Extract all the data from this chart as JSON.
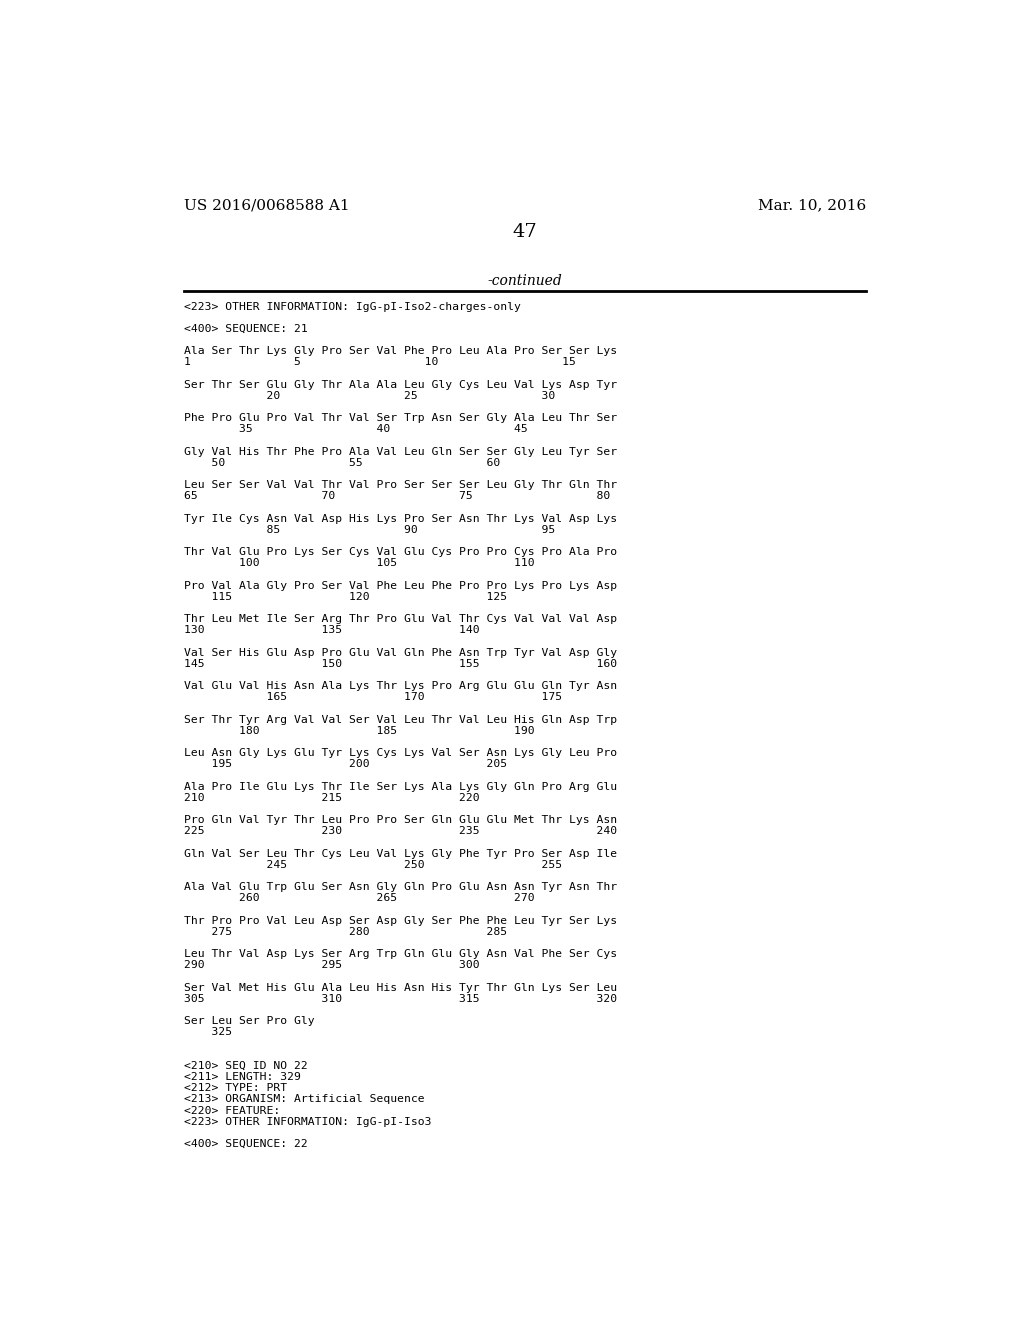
{
  "bg_color": "#ffffff",
  "header_left": "US 2016/0068588 A1",
  "header_right": "Mar. 10, 2016",
  "page_number": "47",
  "continued_text": "-continued",
  "content": [
    {
      "type": "tag",
      "text": "<223> OTHER INFORMATION: IgG-pI-Iso2-charges-only"
    },
    {
      "type": "blank"
    },
    {
      "type": "tag",
      "text": "<400> SEQUENCE: 21"
    },
    {
      "type": "blank"
    },
    {
      "type": "seq",
      "line1": "Ala Ser Thr Lys Gly Pro Ser Val Phe Pro Leu Ala Pro Ser Ser Lys",
      "line2": "1               5                  10                  15"
    },
    {
      "type": "blank"
    },
    {
      "type": "seq",
      "line1": "Ser Thr Ser Glu Gly Thr Ala Ala Leu Gly Cys Leu Val Lys Asp Tyr",
      "line2": "            20                  25                  30"
    },
    {
      "type": "blank"
    },
    {
      "type": "seq",
      "line1": "Phe Pro Glu Pro Val Thr Val Ser Trp Asn Ser Gly Ala Leu Thr Ser",
      "line2": "        35                  40                  45"
    },
    {
      "type": "blank"
    },
    {
      "type": "seq",
      "line1": "Gly Val His Thr Phe Pro Ala Val Leu Gln Ser Ser Gly Leu Tyr Ser",
      "line2": "    50                  55                  60"
    },
    {
      "type": "blank"
    },
    {
      "type": "seq",
      "line1": "Leu Ser Ser Val Val Thr Val Pro Ser Ser Ser Leu Gly Thr Gln Thr",
      "line2": "65                  70                  75                  80"
    },
    {
      "type": "blank"
    },
    {
      "type": "seq",
      "line1": "Tyr Ile Cys Asn Val Asp His Lys Pro Ser Asn Thr Lys Val Asp Lys",
      "line2": "            85                  90                  95"
    },
    {
      "type": "blank"
    },
    {
      "type": "seq",
      "line1": "Thr Val Glu Pro Lys Ser Cys Val Glu Cys Pro Pro Cys Pro Ala Pro",
      "line2": "        100                 105                 110"
    },
    {
      "type": "blank"
    },
    {
      "type": "seq",
      "line1": "Pro Val Ala Gly Pro Ser Val Phe Leu Phe Pro Pro Lys Pro Lys Asp",
      "line2": "    115                 120                 125"
    },
    {
      "type": "blank"
    },
    {
      "type": "seq",
      "line1": "Thr Leu Met Ile Ser Arg Thr Pro Glu Val Thr Cys Val Val Val Asp",
      "line2": "130                 135                 140"
    },
    {
      "type": "blank"
    },
    {
      "type": "seq",
      "line1": "Val Ser His Glu Asp Pro Glu Val Gln Phe Asn Trp Tyr Val Asp Gly",
      "line2": "145                 150                 155                 160"
    },
    {
      "type": "blank"
    },
    {
      "type": "seq",
      "line1": "Val Glu Val His Asn Ala Lys Thr Lys Pro Arg Glu Glu Gln Tyr Asn",
      "line2": "            165                 170                 175"
    },
    {
      "type": "blank"
    },
    {
      "type": "seq",
      "line1": "Ser Thr Tyr Arg Val Val Ser Val Leu Thr Val Leu His Gln Asp Trp",
      "line2": "        180                 185                 190"
    },
    {
      "type": "blank"
    },
    {
      "type": "seq",
      "line1": "Leu Asn Gly Lys Glu Tyr Lys Cys Lys Val Ser Asn Lys Gly Leu Pro",
      "line2": "    195                 200                 205"
    },
    {
      "type": "blank"
    },
    {
      "type": "seq",
      "line1": "Ala Pro Ile Glu Lys Thr Ile Ser Lys Ala Lys Gly Gln Pro Arg Glu",
      "line2": "210                 215                 220"
    },
    {
      "type": "blank"
    },
    {
      "type": "seq",
      "line1": "Pro Gln Val Tyr Thr Leu Pro Pro Ser Gln Glu Glu Met Thr Lys Asn",
      "line2": "225                 230                 235                 240"
    },
    {
      "type": "blank"
    },
    {
      "type": "seq",
      "line1": "Gln Val Ser Leu Thr Cys Leu Val Lys Gly Phe Tyr Pro Ser Asp Ile",
      "line2": "            245                 250                 255"
    },
    {
      "type": "blank"
    },
    {
      "type": "seq",
      "line1": "Ala Val Glu Trp Glu Ser Asn Gly Gln Pro Glu Asn Asn Tyr Asn Thr",
      "line2": "        260                 265                 270"
    },
    {
      "type": "blank"
    },
    {
      "type": "seq",
      "line1": "Thr Pro Pro Val Leu Asp Ser Asp Gly Ser Phe Phe Leu Tyr Ser Lys",
      "line2": "    275                 280                 285"
    },
    {
      "type": "blank"
    },
    {
      "type": "seq",
      "line1": "Leu Thr Val Asp Lys Ser Arg Trp Gln Glu Gly Asn Val Phe Ser Cys",
      "line2": "290                 295                 300"
    },
    {
      "type": "blank"
    },
    {
      "type": "seq",
      "line1": "Ser Val Met His Glu Ala Leu His Asn His Tyr Thr Gln Lys Ser Leu",
      "line2": "305                 310                 315                 320"
    },
    {
      "type": "blank"
    },
    {
      "type": "seq",
      "line1": "Ser Leu Ser Pro Gly",
      "line2": "    325"
    },
    {
      "type": "blank"
    },
    {
      "type": "blank"
    },
    {
      "type": "tag",
      "text": "<210> SEQ ID NO 22"
    },
    {
      "type": "tag",
      "text": "<211> LENGTH: 329"
    },
    {
      "type": "tag",
      "text": "<212> TYPE: PRT"
    },
    {
      "type": "tag",
      "text": "<213> ORGANISM: Artificial Sequence"
    },
    {
      "type": "tag",
      "text": "<220> FEATURE:"
    },
    {
      "type": "tag",
      "text": "<223> OTHER INFORMATION: IgG-pI-Iso3"
    },
    {
      "type": "blank"
    },
    {
      "type": "tag",
      "text": "<400> SEQUENCE: 22"
    }
  ]
}
